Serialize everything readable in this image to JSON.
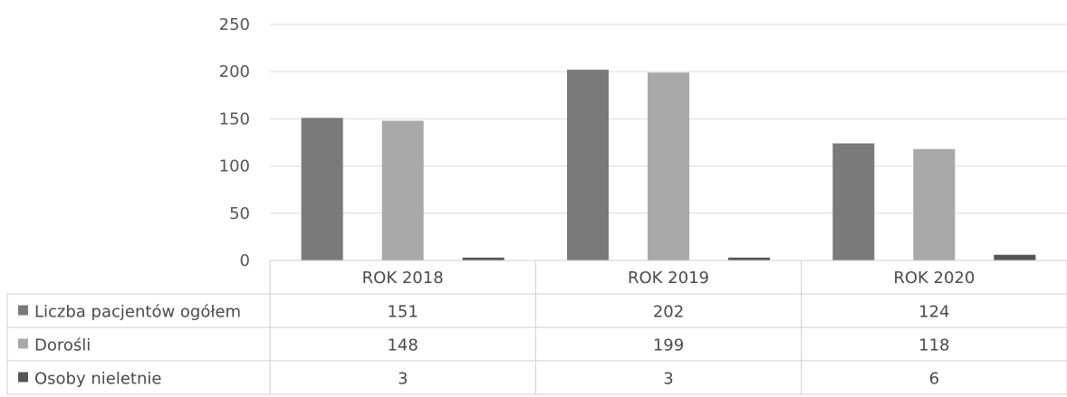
{
  "chart_data": {
    "type": "bar",
    "categories": [
      "ROK 2018",
      "ROK 2019",
      "ROK 2020"
    ],
    "series": [
      {
        "name": "Liczba pacjentów ogółem",
        "values": [
          151,
          202,
          124
        ],
        "color": "#7a7a7a"
      },
      {
        "name": "Dorośli",
        "values": [
          148,
          199,
          118
        ],
        "color": "#a9a9a9"
      },
      {
        "name": "Osoby nieletnie",
        "values": [
          3,
          3,
          6
        ],
        "color": "#555555"
      }
    ],
    "yticks": [
      0,
      50,
      100,
      150,
      200,
      250
    ],
    "ylim": [
      0,
      250
    ],
    "grid": true,
    "legend": "data-table-left",
    "data_table": true
  }
}
